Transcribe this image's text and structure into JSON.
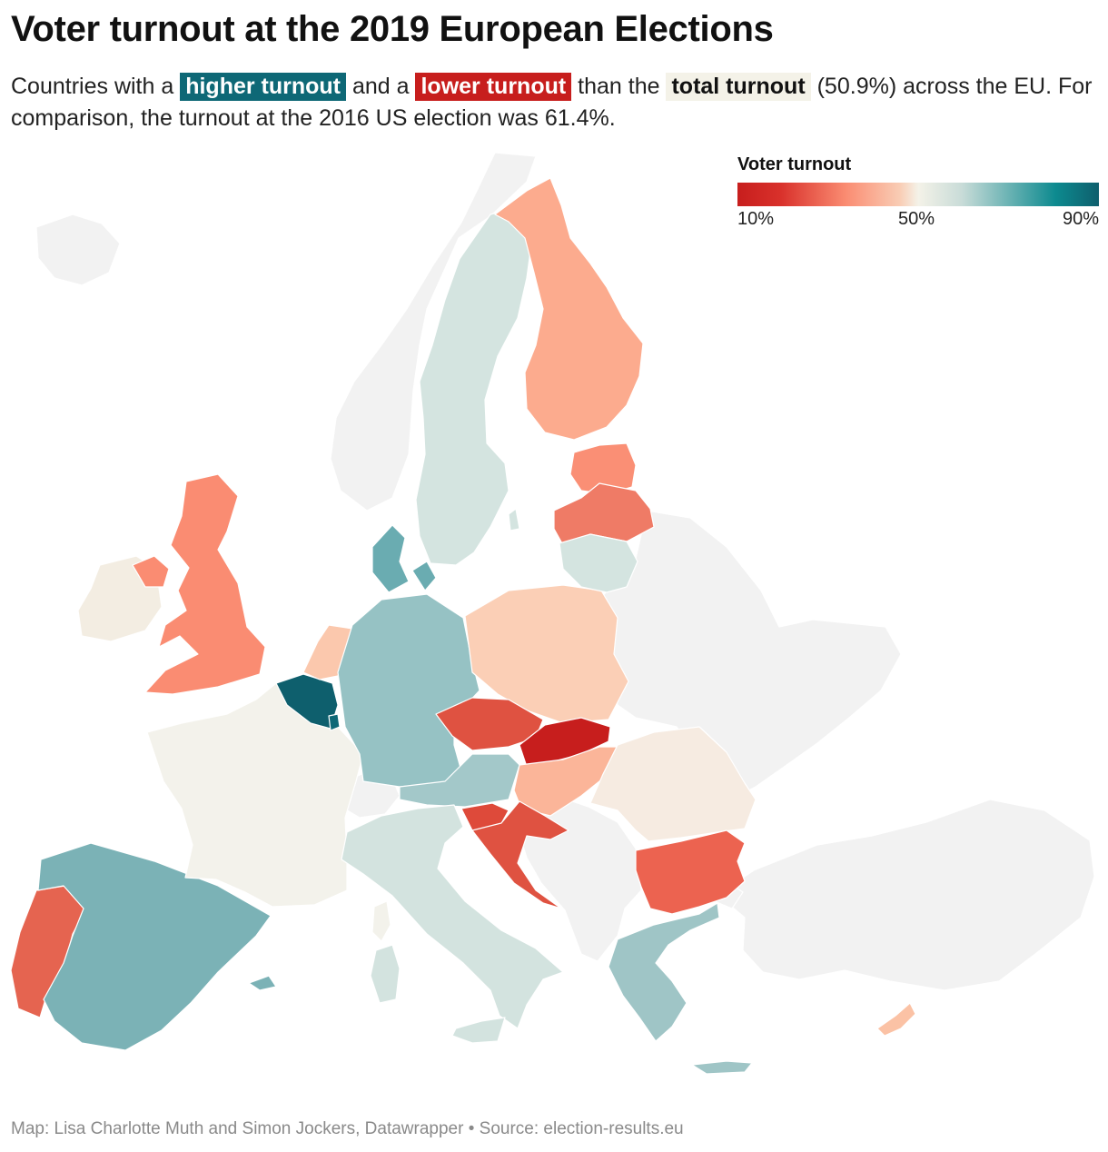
{
  "title": "Voter turnout at the 2019 European Elections",
  "subtitle": {
    "prefix": "Countries with a",
    "higher": "higher turnout",
    "and": "and a",
    "lower": "lower turnout",
    "than": "than the",
    "total": "total turnout",
    "suffix": "(50.9%) across the EU. For comparison, the turnout at the 2016 US election was 61.4%."
  },
  "legend": {
    "title": "Voter turnout",
    "min_label": "10%",
    "mid_label": "50%",
    "max_label": "90%"
  },
  "colors": {
    "higher": "#0e6876",
    "lower": "#c71e1d",
    "total": "#f4f2e8",
    "non_eu": "#f2f2f2"
  },
  "footer": "Map: Lisa Charlotte Muth and Simon Jockers, Datawrapper • Source: election-results.eu"
}
